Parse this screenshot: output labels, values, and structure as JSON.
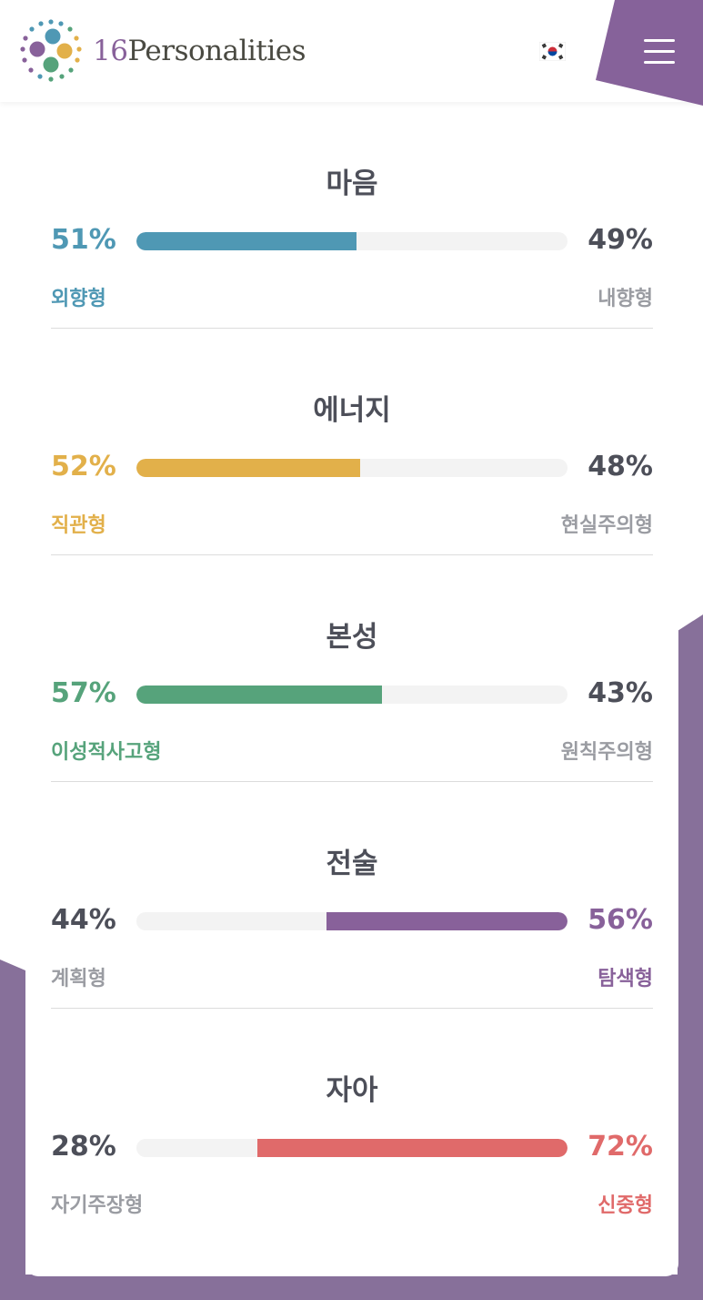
{
  "header": {
    "brand_number": "16",
    "brand_name": "Personalities",
    "language_flag": "korea-flag-icon",
    "menu_icon": "hamburger-menu-icon"
  },
  "colors": {
    "brand_purple": "#88619a",
    "mind": "#4f98b4",
    "energy": "#e2b04a",
    "nature": "#56a37b",
    "tactics": "#88619a",
    "identity": "#e06a6a",
    "neutral_text": "#4d4f59",
    "muted_text": "#9a9ca2"
  },
  "traits": [
    {
      "title": "마음",
      "left_percent": "51%",
      "right_percent": "49%",
      "left_label": "외향형",
      "right_label": "내향형",
      "fill_side": "left",
      "fill_fraction": 0.51,
      "color": "#4f98b4"
    },
    {
      "title": "에너지",
      "left_percent": "52%",
      "right_percent": "48%",
      "left_label": "직관형",
      "right_label": "현실주의형",
      "fill_side": "left",
      "fill_fraction": 0.52,
      "color": "#e2b04a"
    },
    {
      "title": "본성",
      "left_percent": "57%",
      "right_percent": "43%",
      "left_label": "이성적사고형",
      "right_label": "원칙주의형",
      "fill_side": "left",
      "fill_fraction": 0.57,
      "color": "#56a37b"
    },
    {
      "title": "전술",
      "left_percent": "44%",
      "right_percent": "56%",
      "left_label": "계획형",
      "right_label": "탐색형",
      "fill_side": "right",
      "fill_fraction": 0.56,
      "color": "#88619a"
    },
    {
      "title": "자아",
      "left_percent": "28%",
      "right_percent": "72%",
      "left_label": "자기주장형",
      "right_label": "신중형",
      "fill_side": "right",
      "fill_fraction": 0.72,
      "color": "#e06a6a"
    }
  ]
}
